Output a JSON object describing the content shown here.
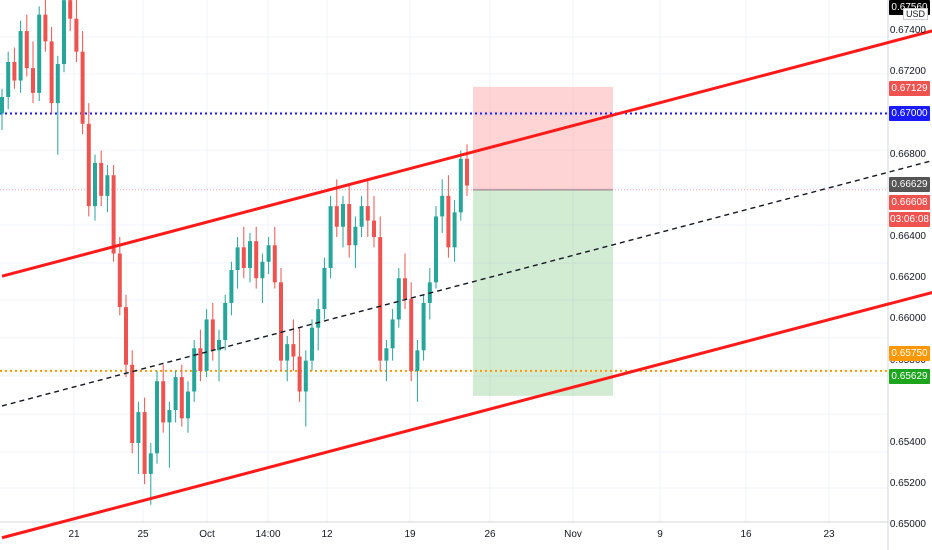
{
  "colors": {
    "up": "#26a69a",
    "down": "#ef5350",
    "channel": "#ff1a1a",
    "blue_dotted": "#1a1aff",
    "orange_dotted": "#ff9800",
    "grid": "#f0f3fa"
  },
  "currency": "USD",
  "price_axis": {
    "ticks": [
      "0.67400",
      "0.67200",
      "0.66800",
      "0.66400",
      "0.66200",
      "0.66000",
      "0.65800",
      "0.65400",
      "0.65200",
      "0.65000"
    ],
    "tags": [
      {
        "text": "0.67560",
        "bg": "#000000"
      },
      {
        "text": "0.67129",
        "bg": "#ef5350"
      },
      {
        "text": "0.67000",
        "bg": "#1a1aff"
      },
      {
        "text": "0.66629",
        "bg": "#555555"
      },
      {
        "text": "0.66608",
        "bg": "#ef5350"
      },
      {
        "text": "03:06:08",
        "bg": "#ef5350"
      },
      {
        "text": "0.65750",
        "bg": "#ff9800"
      },
      {
        "text": "0.65629",
        "bg": "#1ea51e"
      }
    ]
  },
  "time_axis": {
    "labels": [
      "21",
      "25",
      "Oct",
      "14:00",
      "12",
      "19",
      "26",
      "Nov",
      "9",
      "16",
      "23"
    ]
  },
  "chart_data": {
    "type": "candlestick",
    "title": "",
    "ylabel": "USD",
    "ylim": [
      0.649,
      0.6758
    ],
    "horizontal_levels": [
      {
        "price": 0.6756,
        "color": "#000000",
        "style": "solid"
      },
      {
        "price": 0.67,
        "color": "#1a1aff",
        "style": "dotted"
      },
      {
        "price": 0.6575,
        "color": "#ff9800",
        "style": "dotted"
      }
    ],
    "position": {
      "entry": 0.66629,
      "stop": 0.67129,
      "target": 0.65629
    },
    "channel_lines": [
      {
        "from": [
          0,
          0.6621
        ],
        "to": [
          160,
          0.6748
        ],
        "color": "red"
      },
      {
        "from": [
          0,
          0.6494
        ],
        "to": [
          160,
          0.6621
        ],
        "color": "red"
      },
      {
        "from": [
          0,
          0.6558
        ],
        "to": [
          160,
          0.6685
        ],
        "color": "black",
        "style": "dashed"
      }
    ],
    "candles": [
      [
        0.67,
        0.6712,
        0.6692,
        0.6708
      ],
      [
        0.6708,
        0.673,
        0.6702,
        0.6725
      ],
      [
        0.6725,
        0.6732,
        0.6712,
        0.6716
      ],
      [
        0.6716,
        0.6745,
        0.671,
        0.674
      ],
      [
        0.674,
        0.6748,
        0.6718,
        0.6722
      ],
      [
        0.6722,
        0.6735,
        0.6705,
        0.671
      ],
      [
        0.671,
        0.6752,
        0.6706,
        0.6748
      ],
      [
        0.6748,
        0.676,
        0.673,
        0.6735
      ],
      [
        0.6735,
        0.6742,
        0.67,
        0.6705
      ],
      [
        0.6705,
        0.6728,
        0.668,
        0.6724
      ],
      [
        0.6724,
        0.676,
        0.672,
        0.6755
      ],
      [
        0.6755,
        0.676,
        0.674,
        0.6746
      ],
      [
        0.6746,
        0.676,
        0.6725,
        0.673
      ],
      [
        0.673,
        0.674,
        0.669,
        0.6695
      ],
      [
        0.6695,
        0.6705,
        0.665,
        0.6655
      ],
      [
        0.6655,
        0.668,
        0.6648,
        0.6676
      ],
      [
        0.6676,
        0.6682,
        0.6655,
        0.666
      ],
      [
        0.666,
        0.6675,
        0.6652,
        0.667
      ],
      [
        0.667,
        0.6675,
        0.6628,
        0.6632
      ],
      [
        0.6632,
        0.664,
        0.6602,
        0.6606
      ],
      [
        0.6606,
        0.6612,
        0.6572,
        0.6578
      ],
      [
        0.6578,
        0.6585,
        0.6535,
        0.654
      ],
      [
        0.654,
        0.656,
        0.6525,
        0.6555
      ],
      [
        0.6555,
        0.6562,
        0.652,
        0.6525
      ],
      [
        0.6525,
        0.654,
        0.651,
        0.6535
      ],
      [
        0.6535,
        0.6575,
        0.653,
        0.657
      ],
      [
        0.657,
        0.6578,
        0.6545,
        0.655
      ],
      [
        0.655,
        0.656,
        0.6528,
        0.6556
      ],
      [
        0.6556,
        0.6575,
        0.655,
        0.6572
      ],
      [
        0.6572,
        0.6578,
        0.6548,
        0.6552
      ],
      [
        0.6552,
        0.657,
        0.6545,
        0.6565
      ],
      [
        0.6565,
        0.659,
        0.656,
        0.6586
      ],
      [
        0.6586,
        0.6595,
        0.657,
        0.6575
      ],
      [
        0.6575,
        0.6605,
        0.6572,
        0.66
      ],
      [
        0.66,
        0.6608,
        0.658,
        0.6585
      ],
      [
        0.6585,
        0.6595,
        0.657,
        0.659
      ],
      [
        0.659,
        0.6612,
        0.6585,
        0.6608
      ],
      [
        0.6608,
        0.6628,
        0.6602,
        0.6624
      ],
      [
        0.6624,
        0.664,
        0.6615,
        0.6635
      ],
      [
        0.6635,
        0.6645,
        0.662,
        0.6625
      ],
      [
        0.6625,
        0.6642,
        0.6618,
        0.6638
      ],
      [
        0.6638,
        0.6645,
        0.6615,
        0.662
      ],
      [
        0.662,
        0.6632,
        0.6608,
        0.6628
      ],
      [
        0.6628,
        0.664,
        0.6622,
        0.6636
      ],
      [
        0.6636,
        0.6645,
        0.6615,
        0.6618
      ],
      [
        0.6618,
        0.6625,
        0.6575,
        0.658
      ],
      [
        0.658,
        0.6592,
        0.657,
        0.6588
      ],
      [
        0.6588,
        0.66,
        0.6575,
        0.6582
      ],
      [
        0.6582,
        0.6596,
        0.656,
        0.6565
      ],
      [
        0.6565,
        0.6585,
        0.6548,
        0.658
      ],
      [
        0.658,
        0.66,
        0.6575,
        0.6596
      ],
      [
        0.6596,
        0.661,
        0.6585,
        0.6605
      ],
      [
        0.6605,
        0.663,
        0.66,
        0.6625
      ],
      [
        0.6625,
        0.666,
        0.662,
        0.6655
      ],
      [
        0.6655,
        0.6668,
        0.664,
        0.6645
      ],
      [
        0.6645,
        0.666,
        0.6635,
        0.6656
      ],
      [
        0.6656,
        0.6665,
        0.663,
        0.6636
      ],
      [
        0.6636,
        0.665,
        0.6625,
        0.6645
      ],
      [
        0.6645,
        0.666,
        0.664,
        0.6655
      ],
      [
        0.6655,
        0.6668,
        0.664,
        0.6648
      ],
      [
        0.6648,
        0.666,
        0.6635,
        0.664
      ],
      [
        0.664,
        0.665,
        0.6575,
        0.658
      ],
      [
        0.658,
        0.659,
        0.657,
        0.6586
      ],
      [
        0.6586,
        0.6605,
        0.658,
        0.66
      ],
      [
        0.66,
        0.6625,
        0.6596,
        0.662
      ],
      [
        0.662,
        0.6632,
        0.6605,
        0.661
      ],
      [
        0.661,
        0.6618,
        0.657,
        0.6575
      ],
      [
        0.6575,
        0.659,
        0.656,
        0.6585
      ],
      [
        0.6585,
        0.6612,
        0.658,
        0.6608
      ],
      [
        0.6608,
        0.6625,
        0.66,
        0.6618
      ],
      [
        0.6618,
        0.6655,
        0.6615,
        0.665
      ],
      [
        0.665,
        0.6668,
        0.6642,
        0.666
      ],
      [
        0.666,
        0.667,
        0.663,
        0.6635
      ],
      [
        0.6635,
        0.6658,
        0.6628,
        0.6652
      ],
      [
        0.6652,
        0.6682,
        0.6648,
        0.6678
      ],
      [
        0.6678,
        0.6685,
        0.666,
        0.6665
      ]
    ]
  }
}
